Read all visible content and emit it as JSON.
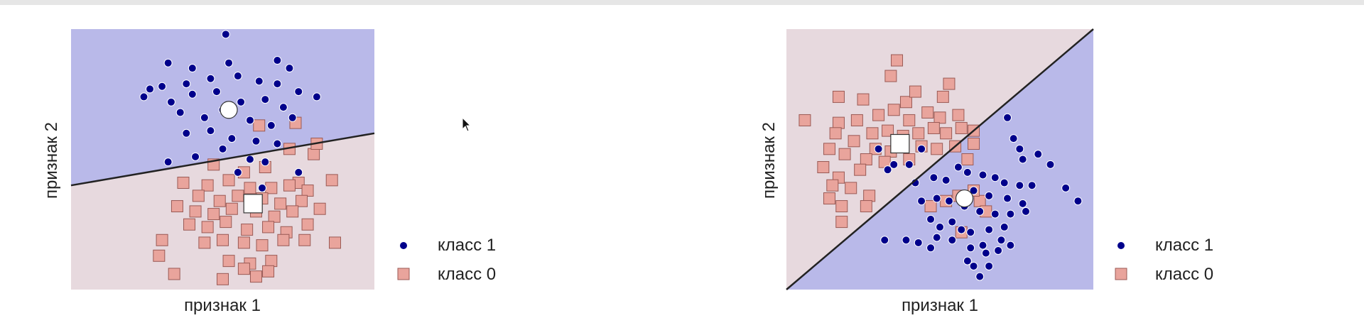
{
  "chart_data": [
    {
      "type": "scatter",
      "xlabel": "признак 1",
      "ylabel": "признак 2",
      "xlim": [
        0,
        10
      ],
      "ylim": [
        0,
        10
      ],
      "grid": false,
      "legend_placement": "outside-right",
      "boundary": {
        "y_at_x0": 4.0,
        "y_at_x10": 6.0
      },
      "colors": {
        "region_class1": "#b9b9e9",
        "region_class0": "#e7d9de",
        "class1_marker": "#00008b",
        "class0_marker": "#e9a49c",
        "class0_edge": "#9a5a55",
        "boundary": "#222222"
      },
      "series": [
        {
          "name": "класс 1",
          "marker": "circle",
          "center": {
            "x": 5.2,
            "y": 6.9
          },
          "points": [
            [
              5.1,
              9.8
            ],
            [
              3.2,
              8.7
            ],
            [
              4.0,
              8.5
            ],
            [
              5.2,
              8.7
            ],
            [
              6.8,
              8.8
            ],
            [
              7.2,
              8.5
            ],
            [
              2.6,
              7.7
            ],
            [
              3.0,
              7.8
            ],
            [
              3.8,
              7.9
            ],
            [
              4.6,
              8.1
            ],
            [
              5.5,
              8.2
            ],
            [
              6.2,
              8.0
            ],
            [
              6.8,
              7.9
            ],
            [
              7.5,
              7.6
            ],
            [
              8.1,
              7.4
            ],
            [
              2.4,
              7.4
            ],
            [
              3.3,
              7.2
            ],
            [
              4.0,
              7.5
            ],
            [
              4.8,
              7.6
            ],
            [
              5.6,
              7.2
            ],
            [
              6.4,
              7.3
            ],
            [
              7.0,
              7.0
            ],
            [
              3.6,
              6.8
            ],
            [
              4.4,
              6.6
            ],
            [
              5.0,
              6.9
            ],
            [
              5.9,
              6.5
            ],
            [
              6.6,
              6.3
            ],
            [
              7.3,
              6.6
            ],
            [
              3.8,
              6.0
            ],
            [
              4.6,
              6.1
            ],
            [
              5.3,
              5.8
            ],
            [
              6.1,
              5.7
            ],
            [
              6.8,
              5.6
            ],
            [
              4.1,
              5.1
            ],
            [
              5.0,
              5.4
            ],
            [
              5.9,
              5.0
            ],
            [
              6.4,
              4.9
            ],
            [
              3.2,
              4.9
            ],
            [
              5.5,
              4.5
            ],
            [
              7.5,
              4.5
            ],
            [
              6.3,
              3.9
            ]
          ]
        },
        {
          "name": "класс 0",
          "marker": "square",
          "center": {
            "x": 6.0,
            "y": 3.3
          },
          "points": [
            [
              7.4,
              6.4
            ],
            [
              6.2,
              6.3
            ],
            [
              7.2,
              5.4
            ],
            [
              8.0,
              5.2
            ],
            [
              8.1,
              5.6
            ],
            [
              4.7,
              4.8
            ],
            [
              5.7,
              4.5
            ],
            [
              6.4,
              4.7
            ],
            [
              7.5,
              4.1
            ],
            [
              3.7,
              4.1
            ],
            [
              4.5,
              4.0
            ],
            [
              5.2,
              4.2
            ],
            [
              5.9,
              3.9
            ],
            [
              6.6,
              3.9
            ],
            [
              7.2,
              4.0
            ],
            [
              7.8,
              3.8
            ],
            [
              8.6,
              4.2
            ],
            [
              4.2,
              3.6
            ],
            [
              4.9,
              3.4
            ],
            [
              5.5,
              3.6
            ],
            [
              6.3,
              3.5
            ],
            [
              6.9,
              3.3
            ],
            [
              7.6,
              3.4
            ],
            [
              3.5,
              3.2
            ],
            [
              4.1,
              3.0
            ],
            [
              4.7,
              2.9
            ],
            [
              5.3,
              3.1
            ],
            [
              6.1,
              3.0
            ],
            [
              6.7,
              2.8
            ],
            [
              7.3,
              3.0
            ],
            [
              8.2,
              3.1
            ],
            [
              3.9,
              2.5
            ],
            [
              4.5,
              2.4
            ],
            [
              5.1,
              2.6
            ],
            [
              5.8,
              2.3
            ],
            [
              6.5,
              2.4
            ],
            [
              7.1,
              2.2
            ],
            [
              7.8,
              2.5
            ],
            [
              8.7,
              1.8
            ],
            [
              3.0,
              1.9
            ],
            [
              4.4,
              1.8
            ],
            [
              5.0,
              1.9
            ],
            [
              5.7,
              1.8
            ],
            [
              6.3,
              1.7
            ],
            [
              7.0,
              1.9
            ],
            [
              7.7,
              1.9
            ],
            [
              2.9,
              1.3
            ],
            [
              5.2,
              1.1
            ],
            [
              5.9,
              1.0
            ],
            [
              6.6,
              1.1
            ],
            [
              3.4,
              0.6
            ],
            [
              5.0,
              0.4
            ],
            [
              6.1,
              0.5
            ],
            [
              5.7,
              0.8
            ],
            [
              6.5,
              0.7
            ]
          ]
        }
      ]
    },
    {
      "type": "scatter",
      "xlabel": "признак 1",
      "ylabel": "признак 2",
      "xlim": [
        0,
        10
      ],
      "ylim": [
        0,
        10
      ],
      "grid": false,
      "legend_placement": "outside-right",
      "boundary": {
        "y_at_x0": 0.0,
        "y_at_x10": 10.0
      },
      "colors": {
        "region_class1": "#b9b9e9",
        "region_class0": "#e7d9de",
        "class1_marker": "#00008b",
        "class0_marker": "#e9a49c",
        "class0_edge": "#9a5a55",
        "boundary": "#222222"
      },
      "series": [
        {
          "name": "класс 1",
          "marker": "circle",
          "center": {
            "x": 5.8,
            "y": 3.5
          },
          "points": [
            [
              7.2,
              6.6
            ],
            [
              7.4,
              5.8
            ],
            [
              7.6,
              5.4
            ],
            [
              7.7,
              5.0
            ],
            [
              8.2,
              5.2
            ],
            [
              8.6,
              4.8
            ],
            [
              3.0,
              5.4
            ],
            [
              3.5,
              4.8
            ],
            [
              4.0,
              4.8
            ],
            [
              4.4,
              5.4
            ],
            [
              3.3,
              4.6
            ],
            [
              5.6,
              4.7
            ],
            [
              5.9,
              4.5
            ],
            [
              6.4,
              4.4
            ],
            [
              6.8,
              4.3
            ],
            [
              7.1,
              4.1
            ],
            [
              7.6,
              4.0
            ],
            [
              8.0,
              4.0
            ],
            [
              4.2,
              4.1
            ],
            [
              4.8,
              4.3
            ],
            [
              5.2,
              4.2
            ],
            [
              6.1,
              3.8
            ],
            [
              6.6,
              3.6
            ],
            [
              7.2,
              3.5
            ],
            [
              7.7,
              3.3
            ],
            [
              4.4,
              3.4
            ],
            [
              4.9,
              3.5
            ],
            [
              5.3,
              3.4
            ],
            [
              5.8,
              3.2
            ],
            [
              6.3,
              3.0
            ],
            [
              6.8,
              2.9
            ],
            [
              7.3,
              2.9
            ],
            [
              7.8,
              3.0
            ],
            [
              4.7,
              2.7
            ],
            [
              5.0,
              2.4
            ],
            [
              5.4,
              2.6
            ],
            [
              5.7,
              2.3
            ],
            [
              6.0,
              2.2
            ],
            [
              6.6,
              2.3
            ],
            [
              7.1,
              2.4
            ],
            [
              9.1,
              3.9
            ],
            [
              9.5,
              3.4
            ],
            [
              4.9,
              2.0
            ],
            [
              5.4,
              1.9
            ],
            [
              6.4,
              1.7
            ],
            [
              7.0,
              1.9
            ],
            [
              3.2,
              1.9
            ],
            [
              3.9,
              1.9
            ],
            [
              4.3,
              1.8
            ],
            [
              4.7,
              1.6
            ],
            [
              6.0,
              1.6
            ],
            [
              6.5,
              1.4
            ],
            [
              6.9,
              1.5
            ],
            [
              7.3,
              1.7
            ],
            [
              5.9,
              1.1
            ],
            [
              6.1,
              0.9
            ],
            [
              6.3,
              0.5
            ],
            [
              6.6,
              0.9
            ]
          ]
        },
        {
          "name": "класс 0",
          "marker": "square",
          "center": {
            "x": 3.7,
            "y": 5.6
          },
          "points": [
            [
              3.6,
              8.8
            ],
            [
              3.4,
              8.2
            ],
            [
              1.7,
              7.4
            ],
            [
              2.5,
              7.3
            ],
            [
              3.9,
              7.2
            ],
            [
              4.2,
              7.6
            ],
            [
              5.1,
              7.4
            ],
            [
              5.3,
              7.9
            ],
            [
              3.0,
              6.7
            ],
            [
              3.5,
              6.9
            ],
            [
              4.0,
              6.5
            ],
            [
              4.6,
              6.8
            ],
            [
              5.0,
              6.6
            ],
            [
              5.6,
              6.7
            ],
            [
              1.7,
              6.4
            ],
            [
              2.3,
              6.5
            ],
            [
              2.8,
              6.0
            ],
            [
              3.3,
              6.1
            ],
            [
              3.8,
              5.9
            ],
            [
              4.3,
              6.0
            ],
            [
              4.8,
              6.2
            ],
            [
              5.2,
              6.0
            ],
            [
              5.7,
              6.2
            ],
            [
              6.1,
              6.1
            ],
            [
              0.6,
              6.5
            ],
            [
              1.6,
              6.0
            ],
            [
              2.2,
              5.7
            ],
            [
              2.9,
              5.4
            ],
            [
              3.4,
              5.3
            ],
            [
              4.4,
              5.5
            ],
            [
              4.9,
              5.4
            ],
            [
              5.5,
              5.5
            ],
            [
              6.1,
              5.6
            ],
            [
              1.4,
              5.4
            ],
            [
              1.9,
              5.2
            ],
            [
              2.6,
              5.0
            ],
            [
              3.2,
              4.9
            ],
            [
              4.0,
              5.0
            ],
            [
              5.9,
              5.0
            ],
            [
              1.2,
              4.7
            ],
            [
              1.7,
              4.3
            ],
            [
              2.4,
              4.6
            ],
            [
              1.5,
              4.0
            ],
            [
              2.1,
              3.9
            ],
            [
              2.7,
              3.6
            ],
            [
              1.4,
              3.5
            ],
            [
              1.8,
              3.2
            ],
            [
              2.6,
              3.2
            ],
            [
              1.8,
              2.6
            ],
            [
              4.7,
              3.2
            ],
            [
              5.2,
              3.4
            ],
            [
              5.6,
              3.6
            ],
            [
              6.3,
              3.4
            ],
            [
              6.5,
              3.0
            ],
            [
              5.7,
              2.2
            ],
            [
              6.1,
              3.8
            ]
          ]
        }
      ]
    }
  ]
}
